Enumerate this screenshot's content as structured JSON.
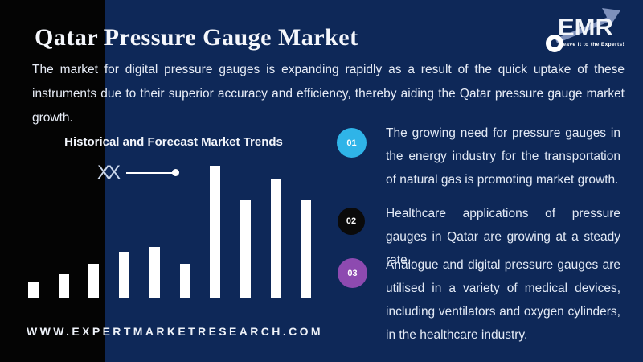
{
  "page": {
    "background_color": "#0e2858",
    "left_panel_color": "#040404"
  },
  "header": {
    "title": "Qatar Pressure Gauge Market",
    "description": "The market for digital pressure gauges is expanding rapidly as a result of the quick uptake of these instruments due to their superior accuracy and efficiency, thereby aiding the Qatar pressure gauge market growth."
  },
  "logo": {
    "text": "EMR",
    "tagline": "Leave it to the Experts!",
    "arrow_color": "#7e91bc",
    "text_color": "#f2f5fa"
  },
  "chart_data": {
    "type": "bar",
    "title": "Historical and Forecast Market Trends",
    "annotation_label": "XX",
    "note": "actual values masked as XX; values are relative heights, tallest bar = 100",
    "categories": [
      "",
      "",
      "",
      "",
      "",
      "",
      "",
      "",
      "",
      ""
    ],
    "values": [
      12,
      18,
      26,
      35,
      39,
      26,
      100,
      74,
      90,
      74
    ],
    "bar_color": "#ffffff",
    "grid": false,
    "axes_visible": false,
    "legend": false
  },
  "highlights": [
    {
      "number": "01",
      "color": "#2fb4e8",
      "text": "The growing need for pressure gauges in the energy industry for the transportation of natural gas is promoting market growth."
    },
    {
      "number": "02",
      "color": "#0a0a0a",
      "text": "Healthcare applications of pressure gauges in Qatar are growing at a steady rate."
    },
    {
      "number": "03",
      "color": "#8d4ab0",
      "text": "Analogue and digital pressure gauges are utilised in a variety of medical devices, including ventilators and oxygen cylinders, in the healthcare industry."
    }
  ],
  "footer": {
    "website": "WWW.EXPERTMARKETRESEARCH.COM"
  }
}
